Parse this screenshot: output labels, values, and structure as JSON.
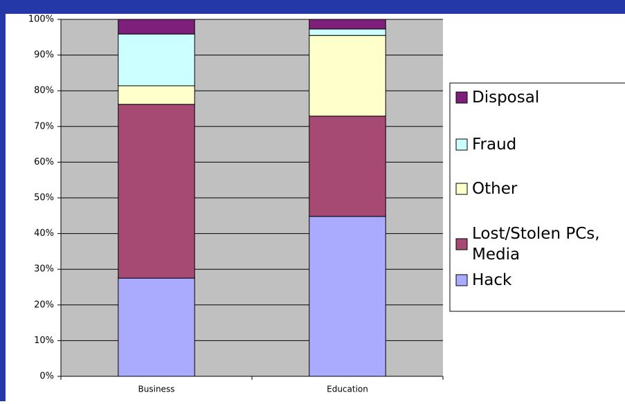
{
  "chart_data": {
    "type": "stacked_bar",
    "categories": [
      "Business",
      "Education"
    ],
    "series": [
      {
        "name": "Hack",
        "color": "#aaaaff",
        "values": [
          27.5,
          44.8
        ]
      },
      {
        "name": "Lost/Stolen PCs, Media",
        "color": "#a64a74",
        "values": [
          48.7,
          28.1
        ]
      },
      {
        "name": "Other",
        "color": "#ffffcc",
        "values": [
          5.2,
          22.6
        ]
      },
      {
        "name": "Fraud",
        "color": "#ccffff",
        "values": [
          14.5,
          1.8
        ]
      },
      {
        "name": "Disposal",
        "color": "#7f1f7c",
        "values": [
          4.1,
          2.7
        ]
      }
    ],
    "ylim": [
      0,
      100
    ],
    "yticks": [
      {
        "value": 0,
        "label": "0%"
      },
      {
        "value": 10,
        "label": "10%"
      },
      {
        "value": 20,
        "label": "20%"
      },
      {
        "value": 30,
        "label": "30%"
      },
      {
        "value": 40,
        "label": "40%"
      },
      {
        "value": 50,
        "label": "50%"
      },
      {
        "value": 60,
        "label": "60%"
      },
      {
        "value": 70,
        "label": "70%"
      },
      {
        "value": 80,
        "label": "80%"
      },
      {
        "value": 90,
        "label": "90%"
      },
      {
        "value": 100,
        "label": "100%"
      }
    ],
    "grid": true,
    "legend": "right"
  }
}
